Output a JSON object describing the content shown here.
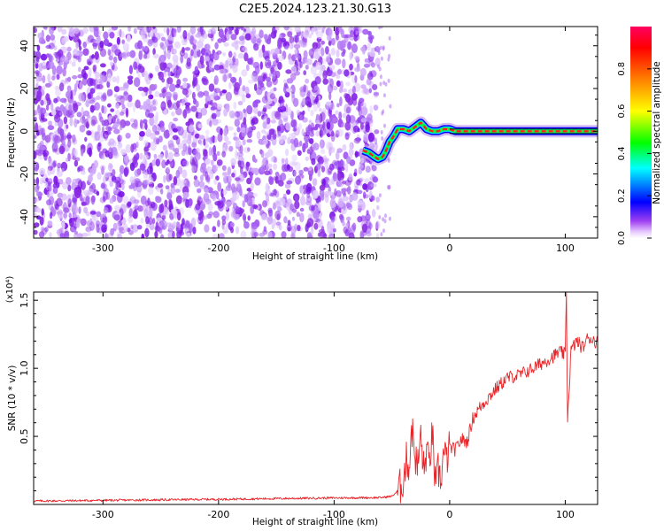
{
  "chart_data": [
    {
      "type": "heatmap",
      "title": "C2E5.2024.123.21.30.G13",
      "xlabel": "Height of straight line (km)",
      "ylabel": "Frequency (Hz)",
      "xlim": [
        -360,
        128
      ],
      "ylim": [
        -50,
        49
      ],
      "xticks": [
        {
          "value": -300,
          "label": "-300"
        },
        {
          "value": -200,
          "label": "-200"
        },
        {
          "value": -100,
          "label": "-100"
        },
        {
          "value": 0,
          "label": "0"
        },
        {
          "value": 100,
          "label": "100"
        }
      ],
      "yticks": [
        {
          "value": -40,
          "label": "-40"
        },
        {
          "value": -20,
          "label": "-20"
        },
        {
          "value": 0,
          "label": "0"
        },
        {
          "value": 20,
          "label": "20"
        },
        {
          "value": 40,
          "label": "40"
        }
      ],
      "colorbar": {
        "label": "Normalized spectral amplitude",
        "range": [
          0,
          1
        ],
        "ticks": [
          {
            "value": 0.0,
            "label": "0.0"
          },
          {
            "value": 0.2,
            "label": "0.2"
          },
          {
            "value": 0.4,
            "label": "0.4"
          },
          {
            "value": 0.6,
            "label": "0.6"
          },
          {
            "value": 0.8,
            "label": "0.8"
          }
        ],
        "colormap": [
          "#ffffff",
          "#c8a0f0",
          "#7a1ee6",
          "#0000ff",
          "#00ffff",
          "#00ff00",
          "#ffff00",
          "#ff8000",
          "#ff0000",
          "#ff0080"
        ]
      },
      "ridge": {
        "x": [
          -75,
          -70,
          -65,
          -62,
          -58,
          -55,
          -52,
          -48,
          -45,
          -40,
          -35,
          -30,
          -25,
          -20,
          -15,
          -10,
          -5,
          0,
          5,
          10,
          20,
          40,
          60,
          80,
          100,
          128
        ],
        "y": [
          -9,
          -10,
          -12,
          -13,
          -12,
          -9,
          -5,
          -2,
          1,
          1,
          0,
          2,
          4,
          1,
          0,
          0,
          1,
          1,
          0,
          0,
          0,
          0,
          0,
          0,
          0,
          0
        ]
      },
      "noise_region_x": [
        -360,
        -62
      ]
    },
    {
      "type": "line",
      "xlabel": "Height of straight line (km)",
      "ylabel": "SNR (10 * v/v)",
      "y_scale_label": "(x10⁴)",
      "xlim": [
        -360,
        128
      ],
      "ylim": [
        0,
        15600
      ],
      "color": "#e8262a",
      "xticks": [
        {
          "value": -300,
          "label": "-300"
        },
        {
          "value": -200,
          "label": "-200"
        },
        {
          "value": -100,
          "label": "-100"
        },
        {
          "value": 0,
          "label": "0"
        },
        {
          "value": 100,
          "label": "100"
        }
      ],
      "yticks": [
        {
          "value": 5000,
          "label": "0.5"
        },
        {
          "value": 10000,
          "label": "1.0"
        },
        {
          "value": 15000,
          "label": "1.5"
        }
      ],
      "series": [
        {
          "x": [
            -360,
            -300,
            -200,
            -100,
            -60,
            -50,
            -45,
            -42,
            -40,
            -37,
            -35,
            -33,
            -30,
            -28,
            -25,
            -22,
            -20,
            -18,
            -15,
            -12,
            -10,
            -8,
            -5,
            -3,
            0,
            5,
            10,
            15,
            20,
            25,
            30,
            40,
            50,
            60,
            70,
            80,
            90,
            95,
            100,
            101,
            102,
            105,
            110,
            115,
            120,
            128
          ],
          "y": [
            250,
            300,
            380,
            480,
            500,
            600,
            1000,
            1400,
            1900,
            3500,
            2600,
            5800,
            3800,
            2500,
            5000,
            2200,
            4200,
            2800,
            5200,
            900,
            2600,
            1800,
            3800,
            3200,
            4200,
            4000,
            4800,
            4600,
            6300,
            7000,
            7500,
            8500,
            9300,
            9500,
            9900,
            10400,
            10900,
            11200,
            11000,
            15600,
            6200,
            11300,
            12000,
            11500,
            12300,
            11900
          ]
        }
      ]
    }
  ]
}
